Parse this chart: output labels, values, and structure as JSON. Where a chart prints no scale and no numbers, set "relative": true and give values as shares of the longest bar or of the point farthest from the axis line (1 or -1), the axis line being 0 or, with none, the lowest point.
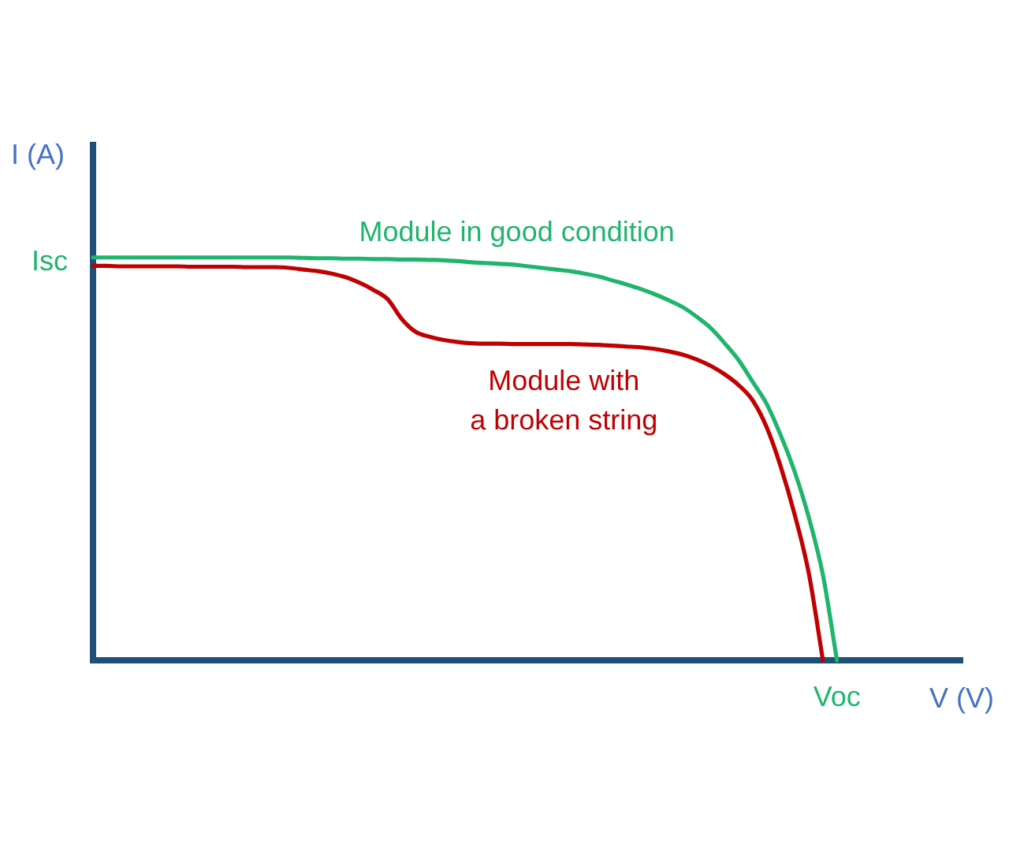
{
  "chart_data": {
    "type": "line",
    "relative": true,
    "xlabel": "V (V)",
    "ylabel": "I (A)",
    "categories": [
      null,
      null,
      null,
      null,
      null,
      null,
      null,
      null,
      null,
      null,
      null,
      null,
      null,
      null,
      null,
      null,
      null,
      null,
      null,
      null,
      null,
      null,
      null,
      null,
      null,
      null,
      null,
      null,
      null,
      null,
      null,
      null,
      null,
      null,
      null,
      null,
      null,
      null,
      null,
      null,
      null,
      null,
      null,
      null,
      null,
      null,
      null,
      null,
      null,
      null,
      null,
      null,
      null,
      null,
      null,
      null,
      null,
      null,
      null,
      null,
      null,
      null,
      null
    ],
    "series": [
      {
        "name": "Module in good condition",
        "color": "#1fb56c",
        "values": [
          1.0,
          1.0,
          1.0,
          1.0,
          1.0,
          1.0,
          1.0,
          1.0,
          1.0,
          1.0,
          1.0,
          1.0,
          1.0,
          1.0,
          1.0,
          0.999,
          0.998,
          0.998,
          0.997,
          0.997,
          0.996,
          0.996,
          0.995,
          0.995,
          0.994,
          0.993,
          0.991,
          0.988,
          0.986,
          0.984,
          0.982,
          0.978,
          0.974,
          0.97,
          0.966,
          0.96,
          0.953,
          0.943,
          0.933,
          0.922,
          0.909,
          0.894,
          0.877,
          0.853,
          0.825,
          0.787,
          0.745,
          0.691,
          0.636,
          0.558,
          0.467,
          0.354,
          0.212,
          0,
          null,
          null,
          null,
          null,
          null,
          null,
          null,
          null,
          null
        ]
      },
      {
        "name": "Module with\na broken string",
        "color": "#c00000",
        "values": [
          0.979,
          0.979,
          0.978,
          0.978,
          0.978,
          0.978,
          0.978,
          0.977,
          0.977,
          0.977,
          0.977,
          0.976,
          0.976,
          0.976,
          0.974,
          0.97,
          0.966,
          0.96,
          0.951,
          0.937,
          0.919,
          0.896,
          0.847,
          0.815,
          0.803,
          0.795,
          0.79,
          0.787,
          0.786,
          0.786,
          0.785,
          0.785,
          0.785,
          0.785,
          0.785,
          0.784,
          0.783,
          0.781,
          0.779,
          0.777,
          0.773,
          0.767,
          0.759,
          0.747,
          0.731,
          0.71,
          0.683,
          0.645,
          0.578,
          0.48,
          0.36,
          0.215,
          0,
          null,
          null,
          null,
          null,
          null,
          null,
          null,
          null,
          null,
          null
        ]
      }
    ],
    "annotations": [
      "Isc",
      "Voc"
    ]
  }
}
